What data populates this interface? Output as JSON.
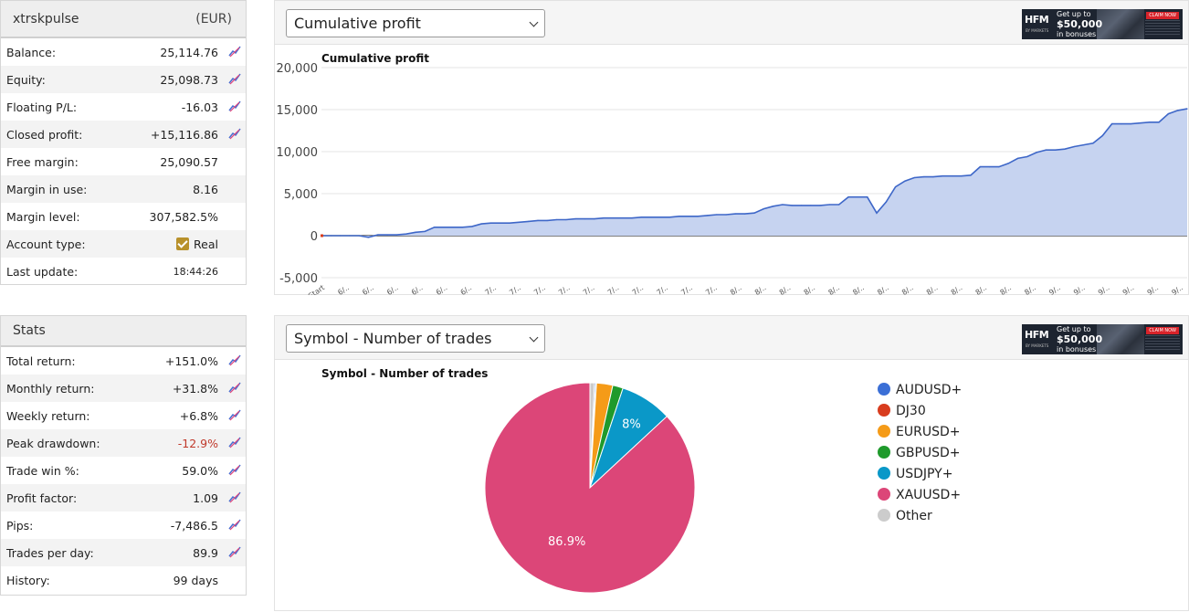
{
  "account": {
    "name": "xtrskpulse",
    "currency": "(EUR)",
    "rows": [
      {
        "label": "Balance:",
        "value": "25,114.76",
        "icon": "chart-line-icon"
      },
      {
        "label": "Equity:",
        "value": "25,098.73",
        "icon": "chart-line-icon"
      },
      {
        "label": "Floating P/L:",
        "value": "-16.03",
        "icon": "chart-line-icon"
      },
      {
        "label": "Closed profit:",
        "value": "+15,116.86",
        "icon": "chart-line-icon"
      },
      {
        "label": "Free margin:",
        "value": "25,090.57"
      },
      {
        "label": "Margin in use:",
        "value": "8.16"
      },
      {
        "label": "Margin level:",
        "value": "307,582.5%"
      },
      {
        "label": "Account type:",
        "value": "Real"
      },
      {
        "label": "Last update:",
        "value": "18:44:26"
      }
    ]
  },
  "stats": {
    "title": "Stats",
    "rows": [
      {
        "label": "Total return:",
        "value": "+151.0%",
        "icon": "chart-line-icon"
      },
      {
        "label": "Monthly return:",
        "value": "+31.8%",
        "icon": "chart-line-icon"
      },
      {
        "label": "Weekly return:",
        "value": "+6.8%",
        "icon": "chart-line-icon"
      },
      {
        "label": "Peak drawdown:",
        "value": "-12.9%",
        "icon": "chart-line-icon"
      },
      {
        "label": "Trade win %:",
        "value": "59.0%",
        "icon": "chart-line-icon"
      },
      {
        "label": "Profit factor:",
        "value": "1.09",
        "icon": "chart-line-icon"
      },
      {
        "label": "Pips:",
        "value": "-7,486.5",
        "icon": "chart-line-icon"
      },
      {
        "label": "Trades per day:",
        "value": "89.9",
        "icon": "chart-line-icon"
      },
      {
        "label": "History:",
        "value": "99 days"
      }
    ]
  },
  "ad": {
    "logo": "HFM",
    "logo_sub": "BY MARKETS",
    "line1": "Get up to",
    "line2": "$50,000",
    "line3": "in bonuses",
    "cta": "CLAIM NOW"
  },
  "colors": {
    "area_fill": "#c6d3f0",
    "area_line": "#3e67c8",
    "negative": "#c0392b",
    "check": "#b8912b"
  },
  "chart_data": [
    {
      "type": "area",
      "select_label": "Cumulative profit",
      "title": "Cumulative profit",
      "ylim": [
        -5000,
        20000
      ],
      "y_ticks": [
        "20,000",
        "15,000",
        "10,000",
        "5,000",
        "0",
        "-5,000"
      ],
      "x_tick_labels": [
        "Start",
        "6/..",
        "6/..",
        "6/..",
        "6/..",
        "6/..",
        "6/..",
        "7/..",
        "7/..",
        "7/..",
        "7/..",
        "7/..",
        "7/..",
        "7/..",
        "7/..",
        "7/..",
        "7/..",
        "8/..",
        "8/..",
        "8/..",
        "8/..",
        "8/..",
        "8/..",
        "8/..",
        "8/..",
        "8/..",
        "8/..",
        "8/..",
        "8/..",
        "8/..",
        "9/..",
        "9/..",
        "9/..",
        "9/..",
        "9/..",
        "9/.."
      ],
      "y": [
        0,
        0,
        0,
        0,
        0,
        -200,
        100,
        100,
        100,
        200,
        400,
        500,
        1000,
        1000,
        1000,
        1000,
        1100,
        1400,
        1500,
        1500,
        1500,
        1600,
        1700,
        1800,
        1800,
        1900,
        1900,
        2000,
        2000,
        2000,
        2100,
        2100,
        2100,
        2100,
        2200,
        2200,
        2200,
        2200,
        2300,
        2300,
        2300,
        2400,
        2500,
        2500,
        2600,
        2600,
        2700,
        3200,
        3500,
        3700,
        3600,
        3600,
        3600,
        3600,
        3700,
        3700,
        4600,
        4600,
        4600,
        2700,
        4000,
        5800,
        6500,
        6900,
        7000,
        7000,
        7100,
        7100,
        7100,
        7200,
        8200,
        8200,
        8200,
        8600,
        9200,
        9400,
        9900,
        10200,
        10200,
        10300,
        10600,
        10800,
        11000,
        11900,
        13300,
        13300,
        13300,
        13400,
        13500,
        13500,
        14500,
        14900,
        15100
      ]
    },
    {
      "type": "pie",
      "select_label": "Symbol - Number of trades",
      "title": "Symbol - Number of trades",
      "labels": [
        "AUDUSD+",
        "DJ30",
        "EURUSD+",
        "GBPUSD+",
        "USDJPY+",
        "XAUUSD+",
        "Other"
      ],
      "values": [
        0.2,
        0.1,
        2.5,
        1.6,
        8.0,
        86.9,
        0.7
      ],
      "colors": [
        "#3b6fd6",
        "#d83c1e",
        "#f59b18",
        "#1f9a2c",
        "#0a98c8",
        "#dc4678",
        "#cccccc"
      ],
      "data_labels": [
        "",
        "",
        "",
        "",
        "8%",
        "86.9%",
        ""
      ]
    }
  ]
}
